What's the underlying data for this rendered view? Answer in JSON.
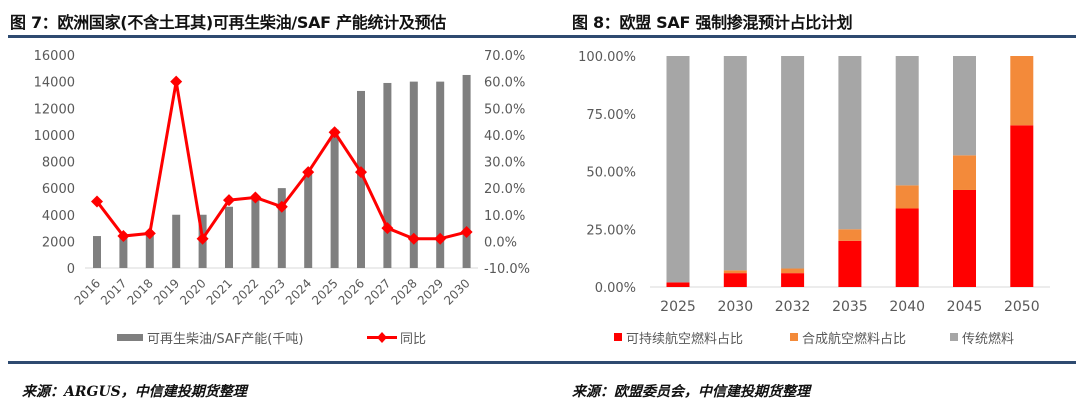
{
  "left": {
    "title": "图 7：欧洲国家(不含土耳其)可再生柴油/SAF 产能统计及预估",
    "source": "来源：ARGUS，中信建投期货整理"
  },
  "right": {
    "title": "图 8：欧盟 SAF 强制掺混预计占比计划",
    "source": "来源：欧盟委员会，中信建投期货整理"
  },
  "colors": {
    "bar": "#7f7f7f",
    "line": "#ff0000",
    "saf": "#ff0000",
    "synthetic": "#f38a3a",
    "traditional": "#a6a6a6",
    "rule": "#2e4a70"
  },
  "chart_data": [
    {
      "type": "bar+line",
      "categories": [
        "2016",
        "2017",
        "2018",
        "2019",
        "2020",
        "2021",
        "2022",
        "2023",
        "2024",
        "2025",
        "2026",
        "2027",
        "2028",
        "2029",
        "2030"
      ],
      "series": [
        {
          "name": "可再生柴油/SAF产能(千吨)",
          "type": "bar",
          "axis": "left",
          "values": [
            2400,
            2400,
            2500,
            4000,
            4000,
            4600,
            5400,
            6000,
            7100,
            10400,
            13300,
            13900,
            14000,
            14000,
            14500
          ]
        },
        {
          "name": "同比",
          "type": "line",
          "axis": "right",
          "values": [
            15.0,
            2.0,
            3.0,
            60.0,
            1.0,
            15.5,
            16.5,
            13.0,
            26.0,
            41.0,
            26.0,
            5.0,
            1.0,
            1.0,
            3.5
          ]
        }
      ],
      "ylim": [
        0,
        16000
      ],
      "yticks": [
        "0",
        "2000",
        "4000",
        "6000",
        "8000",
        "10000",
        "12000",
        "14000",
        "16000"
      ],
      "y2lim": [
        -10,
        70
      ],
      "y2ticks": [
        "-10.0%",
        "0.0%",
        "10.0%",
        "20.0%",
        "30.0%",
        "40.0%",
        "50.0%",
        "60.0%",
        "70.0%"
      ],
      "legend": "bottom"
    },
    {
      "type": "stacked-bar",
      "categories": [
        "2025",
        "2030",
        "2032",
        "2035",
        "2040",
        "2045",
        "2050"
      ],
      "series": [
        {
          "name": "可持续航空燃料占比",
          "values": [
            2,
            6,
            6,
            20,
            34,
            42,
            70
          ]
        },
        {
          "name": "合成航空燃料占比",
          "values": [
            0,
            1.2,
            2,
            5,
            10,
            15,
            30
          ]
        },
        {
          "name": "传统燃料",
          "values": [
            98,
            92.8,
            92,
            75,
            56,
            43,
            0
          ]
        }
      ],
      "ylim": [
        0,
        100
      ],
      "yticks": [
        "0.00%",
        "25.00%",
        "50.00%",
        "75.00%",
        "100.00%"
      ],
      "legend": "bottom"
    }
  ]
}
